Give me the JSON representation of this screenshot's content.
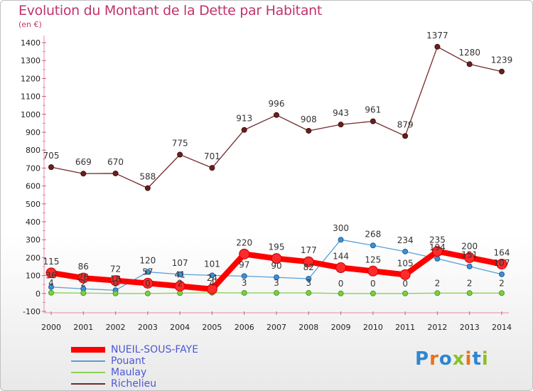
{
  "title": "Evolution du Montant de la Dette par Habitant",
  "unit": "(en €)",
  "logo": {
    "text": "Proxiti"
  },
  "chart_data": {
    "type": "line",
    "title": "Evolution du Montant de la Dette par Habitant",
    "ylabel": "(en €)",
    "x": [
      2000,
      2001,
      2002,
      2003,
      2004,
      2005,
      2006,
      2007,
      2008,
      2009,
      2010,
      2011,
      2012,
      2013,
      2014
    ],
    "ylim": [
      -100,
      1400
    ],
    "yticks": [
      -100,
      0,
      100,
      200,
      300,
      400,
      500,
      600,
      700,
      800,
      900,
      1000,
      1100,
      1200,
      1300,
      1400
    ],
    "grid": false,
    "legend": "bottom-left",
    "series": [
      {
        "name": "Richelieu",
        "color": "#722a2a",
        "values": [
          705,
          669,
          670,
          588,
          775,
          701,
          913,
          996,
          908,
          943,
          961,
          879,
          1377,
          1280,
          1239
        ]
      },
      {
        "name": "Pouant",
        "color": "#5a9fd6",
        "values": [
          36,
          26,
          18,
          120,
          107,
          101,
          97,
          90,
          82,
          300,
          268,
          234,
          194,
          151,
          107
        ]
      },
      {
        "name": "Maulay",
        "color": "#8cd05a",
        "values": [
          4,
          2,
          0,
          0,
          2,
          4,
          3,
          3,
          3,
          0,
          0,
          0,
          2,
          2,
          2
        ]
      },
      {
        "name": "NUEIL-SOUS-FAYE",
        "color": "#ff0000",
        "values": [
          115,
          86,
          72,
          57,
          41,
          24,
          220,
          195,
          177,
          144,
          125,
          105,
          235,
          200,
          164
        ]
      }
    ]
  }
}
